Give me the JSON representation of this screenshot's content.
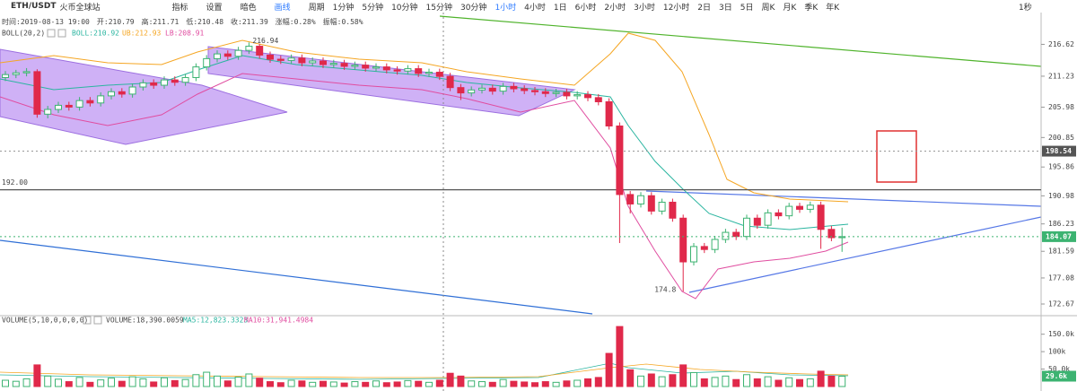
{
  "toolbar": {
    "symbol": "ETH/USDT",
    "exchange": "火币全球站",
    "tools": [
      "指标",
      "设置",
      "暗色",
      "画线"
    ],
    "period_label": "周期",
    "periods": [
      "1分钟",
      "5分钟",
      "10分钟",
      "15分钟",
      "30分钟",
      "1小时",
      "4小时",
      "1日",
      "6小时",
      "2小时",
      "3小时",
      "12小时",
      "2日",
      "3日",
      "5日",
      "周K",
      "月K",
      "季K",
      "年K"
    ],
    "active_period_index": 5,
    "refresh": "1秒"
  },
  "info": {
    "price_fields": [
      "时间:2019-08-13 19:00",
      "开:210.79",
      "高:211.71",
      "低:210.48",
      "收:211.39",
      "涨幅:0.28%",
      "振幅:0.58%"
    ],
    "boll": {
      "name": "BOLL(20,2)",
      "mid": "BOLL:210.92",
      "ub": "UB:212.93",
      "lb": "LB:208.91"
    },
    "volume": {
      "name": "VOLUME(5,10,0,0,0,0)",
      "value": "VOLUME:18,390.0059",
      "ma5": "MA5:12,823.3323",
      "ma10": "MA10:31,941.4984"
    }
  },
  "chart_data": {
    "type": "candlestick",
    "up_color": "#3cb371",
    "down_color": "#e0294a",
    "ylim": [
      171,
      222
    ],
    "yticks": [
      216.62,
      211.23,
      205.98,
      200.85,
      195.86,
      190.98,
      186.23,
      181.59,
      177.08,
      172.67
    ],
    "marker_price": 198.54,
    "hline": {
      "value": 192,
      "label": "192.00"
    },
    "candles": [
      [
        211.0,
        212.1,
        210.4,
        211.5
      ],
      [
        211.5,
        212.3,
        210.9,
        211.8
      ],
      [
        211.8,
        212.6,
        211.2,
        212.0
      ],
      [
        212.0,
        212.4,
        204.2,
        204.8
      ],
      [
        204.8,
        206.2,
        204.1,
        205.6
      ],
      [
        205.6,
        206.9,
        205.0,
        206.3
      ],
      [
        206.3,
        206.9,
        205.4,
        206.0
      ],
      [
        206.0,
        207.7,
        205.4,
        207.1
      ],
      [
        207.1,
        207.7,
        206.1,
        206.7
      ],
      [
        206.7,
        208.5,
        206.1,
        207.9
      ],
      [
        207.9,
        209.2,
        207.3,
        208.6
      ],
      [
        208.6,
        209.2,
        207.6,
        208.2
      ],
      [
        208.2,
        210.0,
        207.6,
        209.4
      ],
      [
        209.4,
        210.7,
        208.8,
        210.1
      ],
      [
        210.1,
        210.7,
        209.1,
        209.7
      ],
      [
        209.7,
        211.2,
        209.1,
        210.6
      ],
      [
        210.6,
        211.2,
        209.6,
        210.2
      ],
      [
        210.2,
        211.6,
        209.6,
        211.0
      ],
      [
        211.0,
        213.4,
        210.4,
        212.8
      ],
      [
        212.8,
        214.8,
        212.2,
        214.2
      ],
      [
        214.2,
        215.6,
        213.6,
        215.0
      ],
      [
        215.0,
        215.6,
        214.0,
        214.6
      ],
      [
        214.6,
        216.2,
        214.0,
        215.6
      ],
      [
        215.6,
        216.94,
        215.0,
        216.3
      ],
      [
        216.3,
        216.7,
        214.2,
        214.8
      ],
      [
        214.8,
        215.4,
        213.5,
        214.1
      ],
      [
        214.1,
        214.7,
        213.3,
        213.9
      ],
      [
        213.9,
        214.9,
        213.3,
        214.3
      ],
      [
        214.3,
        214.9,
        212.9,
        213.5
      ],
      [
        213.5,
        214.4,
        212.9,
        213.8
      ],
      [
        213.8,
        214.4,
        212.6,
        213.2
      ],
      [
        213.2,
        214.0,
        212.6,
        213.4
      ],
      [
        213.4,
        214.0,
        212.3,
        212.9
      ],
      [
        212.9,
        213.7,
        212.3,
        213.1
      ],
      [
        213.1,
        213.7,
        212.0,
        212.6
      ],
      [
        212.6,
        213.4,
        212.0,
        212.8
      ],
      [
        212.8,
        213.4,
        211.7,
        212.3
      ],
      [
        212.3,
        212.9,
        211.5,
        212.1
      ],
      [
        212.1,
        213.1,
        211.5,
        212.5
      ],
      [
        212.5,
        213.1,
        211.1,
        211.7
      ],
      [
        211.7,
        212.5,
        211.1,
        211.9
      ],
      [
        211.9,
        212.5,
        210.6,
        211.2
      ],
      [
        211.2,
        211.8,
        208.7,
        209.3
      ],
      [
        209.3,
        209.9,
        207.2,
        208.4
      ],
      [
        208.4,
        209.5,
        207.8,
        208.9
      ],
      [
        208.9,
        209.8,
        208.3,
        209.2
      ],
      [
        209.2,
        209.8,
        208.1,
        208.7
      ],
      [
        208.7,
        210.1,
        208.1,
        209.5
      ],
      [
        209.5,
        210.1,
        208.5,
        209.1
      ],
      [
        209.1,
        209.7,
        208.2,
        208.8
      ],
      [
        208.8,
        209.4,
        208.0,
        208.6
      ],
      [
        208.6,
        209.2,
        207.7,
        208.3
      ],
      [
        208.3,
        209.1,
        207.7,
        208.5
      ],
      [
        208.5,
        209.1,
        207.3,
        207.9
      ],
      [
        207.9,
        208.7,
        207.3,
        208.1
      ],
      [
        208.1,
        208.7,
        207.0,
        207.6
      ],
      [
        207.6,
        208.2,
        206.3,
        206.9
      ],
      [
        206.9,
        207.5,
        202.2,
        202.8
      ],
      [
        202.8,
        203.4,
        183.0,
        191.2
      ],
      [
        191.2,
        191.8,
        188.0,
        189.6
      ],
      [
        189.6,
        191.6,
        189.0,
        191.0
      ],
      [
        191.0,
        191.6,
        187.8,
        188.4
      ],
      [
        188.4,
        190.5,
        187.8,
        189.9
      ],
      [
        189.9,
        190.5,
        186.6,
        187.2
      ],
      [
        187.2,
        187.8,
        174.8,
        179.8
      ],
      [
        179.8,
        183.0,
        179.2,
        182.4
      ],
      [
        182.4,
        183.0,
        181.3,
        181.9
      ],
      [
        181.9,
        184.2,
        181.3,
        183.6
      ],
      [
        183.6,
        185.4,
        183.0,
        184.8
      ],
      [
        184.8,
        185.4,
        183.5,
        184.1
      ],
      [
        184.1,
        187.8,
        183.5,
        187.2
      ],
      [
        187.2,
        187.8,
        185.4,
        186.0
      ],
      [
        186.0,
        188.7,
        185.4,
        188.1
      ],
      [
        188.1,
        188.7,
        187.0,
        187.6
      ],
      [
        187.6,
        189.8,
        187.0,
        189.2
      ],
      [
        189.2,
        189.8,
        188.1,
        188.7
      ],
      [
        188.7,
        190.0,
        188.1,
        189.4
      ],
      [
        189.4,
        190.0,
        182.0,
        185.3
      ],
      [
        185.3,
        185.9,
        183.3,
        183.9
      ],
      [
        183.9,
        185.6,
        181.5,
        184.07
      ]
    ],
    "high_label_index": 23,
    "low_label_index": 64,
    "volumes": [
      18000,
      15000,
      22000,
      62000,
      30000,
      21000,
      14000,
      26000,
      12000,
      19000,
      24000,
      15000,
      28000,
      22000,
      13000,
      25000,
      17000,
      20000,
      34000,
      41000,
      30000,
      16000,
      27000,
      36000,
      24000,
      14000,
      11000,
      18000,
      16000,
      12000,
      15000,
      13000,
      10000,
      14000,
      12000,
      16000,
      11000,
      13000,
      17000,
      15000,
      12000,
      18000,
      38000,
      30000,
      16000,
      14000,
      12000,
      20000,
      15000,
      13000,
      11000,
      14000,
      12000,
      16000,
      18000,
      22000,
      26000,
      95000,
      172000,
      48000,
      30000,
      36000,
      28000,
      34000,
      62000,
      40000,
      22000,
      26000,
      30000,
      20000,
      34000,
      22000,
      28000,
      18000,
      25000,
      20000,
      22000,
      44000,
      30000,
      29600
    ],
    "volume_value_labels": {
      "79": "29.6k"
    },
    "vylim": [
      0,
      180000
    ],
    "vyticks": [
      {
        "value": 150000,
        "label": "150.0k"
      },
      {
        "value": 100000,
        "label": "100k"
      },
      {
        "value": 50000,
        "label": "50.0k"
      }
    ]
  }
}
